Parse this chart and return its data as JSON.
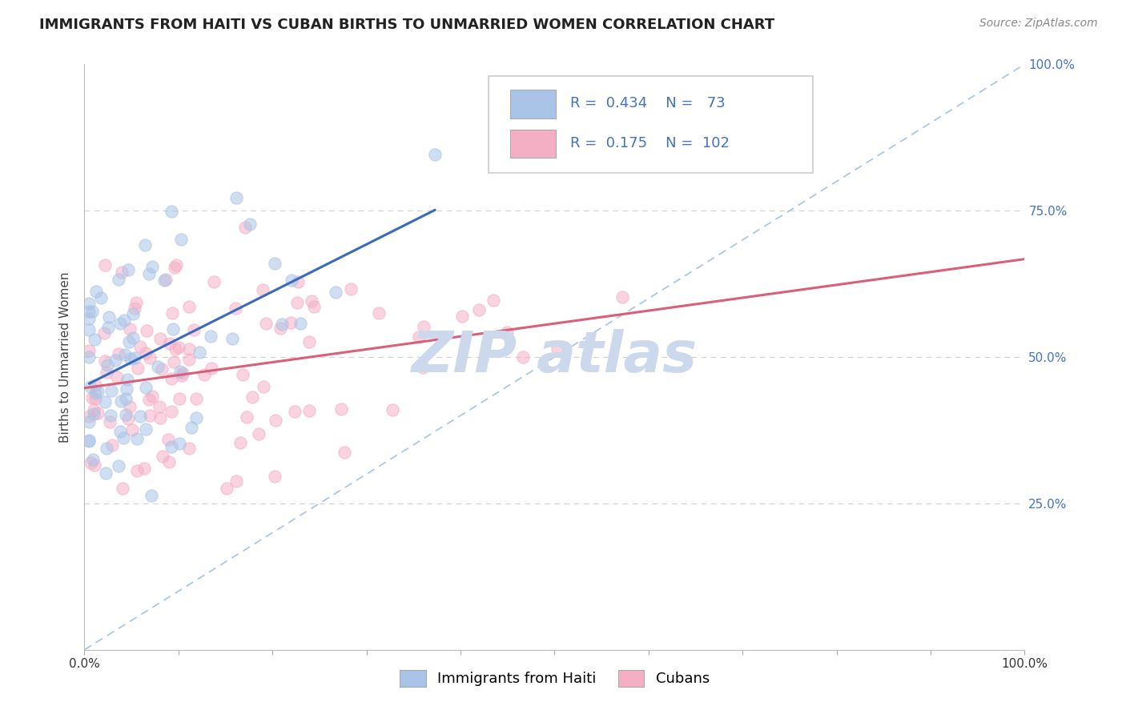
{
  "title": "IMMIGRANTS FROM HAITI VS CUBAN BIRTHS TO UNMARRIED WOMEN CORRELATION CHART",
  "source_text": "Source: ZipAtlas.com",
  "ylabel": "Births to Unmarried Women",
  "right_ytick_labels": [
    "25.0%",
    "50.0%",
    "75.0%",
    "100.0%"
  ],
  "right_ytick_values": [
    0.25,
    0.5,
    0.75,
    1.0
  ],
  "xlim": [
    0.0,
    1.0
  ],
  "ylim": [
    0.0,
    1.0
  ],
  "haiti_R": 0.434,
  "haiti_N": 73,
  "cuba_R": 0.175,
  "cuba_N": 102,
  "haiti_color": "#aac4e8",
  "cuba_color": "#f5afc5",
  "haiti_trend_color": "#3a6abf",
  "cuba_trend_color": "#d9607a",
  "ref_line_color": "#9bbde0",
  "grid_color": "#d0d0d0",
  "title_color": "#222222",
  "source_color": "#888888",
  "right_axis_color": "#4472c4",
  "background_color": "#ffffff",
  "watermark_color": "#ccd8ec",
  "title_fontsize": 13,
  "axis_label_fontsize": 11,
  "tick_fontsize": 11,
  "source_fontsize": 10,
  "legend_fontsize": 13,
  "scatter_size": 120,
  "scatter_alpha": 0.55,
  "trend_linewidth": 2.2,
  "ref_linewidth": 1.2
}
